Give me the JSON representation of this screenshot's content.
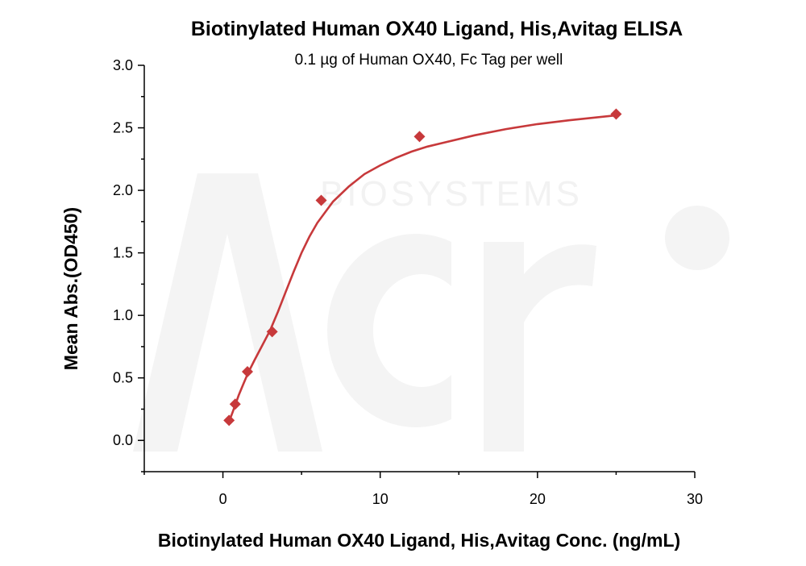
{
  "watermark": {
    "brand": "Acro",
    "tagline": "BIOSYSTEMS"
  },
  "chart_data": {
    "type": "scatter",
    "title": "Biotinylated Human OX40 Ligand, His,Avitag ELISA",
    "subtitle": "0.1 µg of Human OX40, Fc Tag per well",
    "xlabel": "Biotinylated Human OX40 Ligand, His,Avitag Conc. (ng/mL)",
    "ylabel": "Mean Abs.(OD450)",
    "xlim": [
      -5,
      30
    ],
    "ylim": [
      -0.25,
      3.0
    ],
    "xticks": [
      0,
      10,
      20,
      30
    ],
    "xtick_labels": [
      "0",
      "10",
      "20",
      "30"
    ],
    "yticks": [
      0.0,
      0.5,
      1.0,
      1.5,
      2.0,
      2.5,
      3.0
    ],
    "ytick_labels": [
      "0.0",
      "0.5",
      "1.0",
      "1.5",
      "2.0",
      "2.5",
      "3.0"
    ],
    "grid": false,
    "color": "#c7393b",
    "series": [
      {
        "marker": "diamond",
        "x": [
          0.39,
          0.78,
          1.56,
          3.13,
          6.25,
          12.5,
          25
        ],
        "y": [
          0.16,
          0.29,
          0.55,
          0.87,
          1.92,
          2.43,
          2.61
        ]
      }
    ],
    "fit_curve": {
      "model": "4PL",
      "x": [
        0.39,
        0.6,
        0.8,
        1.0,
        1.3,
        1.6,
        2.0,
        2.5,
        3.0,
        3.5,
        4.0,
        4.5,
        5.0,
        5.5,
        6.0,
        7.0,
        8.0,
        9.0,
        10.0,
        11.0,
        12.0,
        13.0,
        14.0,
        16.0,
        18.0,
        20.0,
        22.0,
        25.0
      ],
      "y": [
        0.15,
        0.22,
        0.29,
        0.36,
        0.45,
        0.54,
        0.64,
        0.76,
        0.88,
        1.03,
        1.19,
        1.35,
        1.5,
        1.63,
        1.74,
        1.91,
        2.03,
        2.13,
        2.2,
        2.26,
        2.31,
        2.35,
        2.38,
        2.44,
        2.49,
        2.53,
        2.56,
        2.6
      ]
    }
  }
}
